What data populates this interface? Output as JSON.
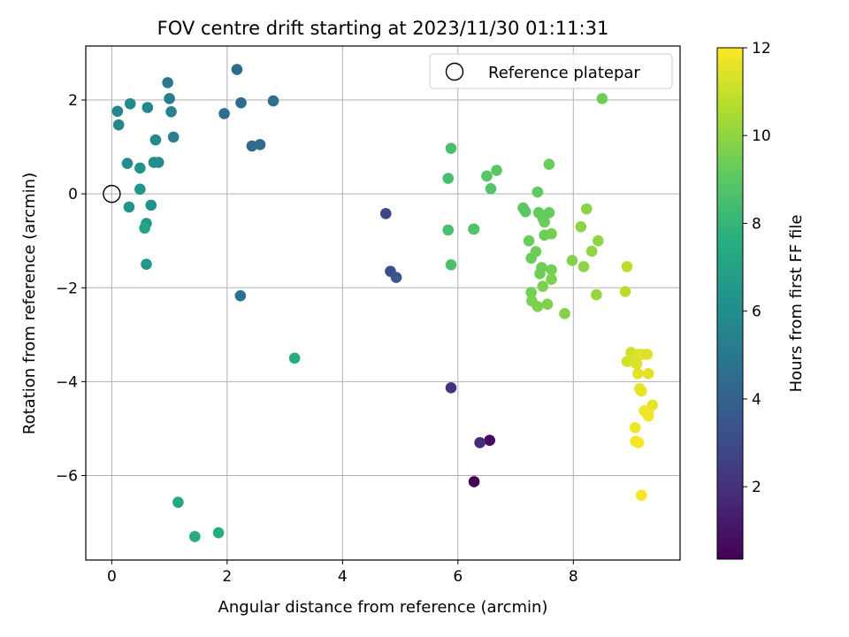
{
  "chart_data": {
    "type": "scatter",
    "title": "FOV centre drift starting at 2023/11/30 01:11:31",
    "xlabel": "Angular distance from reference (arcmin)",
    "ylabel": "Rotation from reference (arcmin)",
    "xlim": [
      -0.45,
      9.85
    ],
    "ylim": [
      -7.8,
      3.15
    ],
    "xticks": [
      0,
      2,
      4,
      6,
      8
    ],
    "yticks": [
      2,
      0,
      -2,
      -4,
      -6
    ],
    "xtick_labels": [
      "0",
      "2",
      "4",
      "6",
      "8"
    ],
    "ytick_labels": [
      "2",
      "0",
      "−2",
      "−4",
      "−6"
    ],
    "grid": true,
    "legend": {
      "placement": "top-right",
      "entries": [
        "Reference platepar"
      ]
    },
    "reference_marker": {
      "label": "Reference platepar",
      "x": 0,
      "y": 0,
      "style": "open-circle"
    },
    "colorbar": {
      "label": "Hours from first FF file",
      "colormap": "viridis",
      "min": 0.35,
      "max": 12,
      "ticks": [
        2,
        4,
        6,
        8,
        10,
        12
      ],
      "tick_labels": [
        "2",
        "4",
        "6",
        "8",
        "10",
        "12"
      ]
    },
    "series": [
      {
        "columns": [
          "x",
          "y",
          "hours"
        ],
        "points": [
          [
            6.28,
            -6.13,
            0.4
          ],
          [
            6.55,
            -5.25,
            0.7
          ],
          [
            6.38,
            -5.3,
            1.8
          ],
          [
            5.88,
            -4.13,
            2.1
          ],
          [
            4.75,
            -0.42,
            2.8
          ],
          [
            4.83,
            -1.65,
            3.1
          ],
          [
            4.93,
            -1.78,
            3.4
          ],
          [
            2.23,
            -2.17,
            4.6
          ],
          [
            2.17,
            2.65,
            4.4
          ],
          [
            2.24,
            1.94,
            4.5
          ],
          [
            1.95,
            1.71,
            4.6
          ],
          [
            2.43,
            1.02,
            4.3
          ],
          [
            2.57,
            1.05,
            4.4
          ],
          [
            2.8,
            1.98,
            4.6
          ],
          [
            0.97,
            2.37,
            5.0
          ],
          [
            1.0,
            2.03,
            5.2
          ],
          [
            1.03,
            1.75,
            5.5
          ],
          [
            1.07,
            1.21,
            5.3
          ],
          [
            0.62,
            1.84,
            5.6
          ],
          [
            0.32,
            1.92,
            5.8
          ],
          [
            0.1,
            1.76,
            5.6
          ],
          [
            0.12,
            1.47,
            5.7
          ],
          [
            0.76,
            1.15,
            5.8
          ],
          [
            0.27,
            0.65,
            6.0
          ],
          [
            0.73,
            0.67,
            6.1
          ],
          [
            0.81,
            0.67,
            6.0
          ],
          [
            0.49,
            0.55,
            6.3
          ],
          [
            0.49,
            0.1,
            6.4
          ],
          [
            0.3,
            -0.28,
            6.3
          ],
          [
            0.68,
            -0.24,
            6.2
          ],
          [
            0.6,
            -0.63,
            6.6
          ],
          [
            0.6,
            -1.5,
            6.5
          ],
          [
            0.57,
            -0.73,
            7.2
          ],
          [
            3.17,
            -3.5,
            7.5
          ],
          [
            1.15,
            -6.57,
            7.3
          ],
          [
            1.44,
            -7.3,
            7.4
          ],
          [
            1.85,
            -7.22,
            7.5
          ],
          [
            5.83,
            0.33,
            8.5
          ],
          [
            5.88,
            0.97,
            8.5
          ],
          [
            5.83,
            -0.77,
            8.5
          ],
          [
            5.88,
            -1.51,
            8.6
          ],
          [
            6.28,
            -0.75,
            8.8
          ],
          [
            6.27,
            -0.75,
            8.7
          ],
          [
            6.5,
            0.38,
            8.9
          ],
          [
            6.57,
            0.11,
            8.8
          ],
          [
            6.67,
            0.5,
            9.0
          ],
          [
            7.13,
            -0.3,
            9.0
          ],
          [
            7.17,
            -0.38,
            9.0
          ],
          [
            7.38,
            0.04,
            9.1
          ],
          [
            7.4,
            -0.4,
            9.2
          ],
          [
            7.47,
            -0.52,
            9.2
          ],
          [
            7.5,
            -0.6,
            9.3
          ],
          [
            7.58,
            -0.4,
            9.2
          ],
          [
            7.58,
            0.63,
            9.3
          ],
          [
            7.23,
            -1.0,
            9.3
          ],
          [
            7.35,
            -1.23,
            9.4
          ],
          [
            7.27,
            -1.37,
            9.3
          ],
          [
            7.45,
            -1.57,
            9.4
          ],
          [
            7.42,
            -1.7,
            9.4
          ],
          [
            7.5,
            -0.88,
            9.4
          ],
          [
            7.62,
            -0.85,
            9.5
          ],
          [
            7.62,
            -1.62,
            9.5
          ],
          [
            7.62,
            -1.82,
            9.6
          ],
          [
            7.27,
            -2.1,
            9.5
          ],
          [
            7.28,
            -2.28,
            9.6
          ],
          [
            7.47,
            -1.97,
            9.6
          ],
          [
            7.38,
            -2.4,
            9.7
          ],
          [
            7.55,
            -2.35,
            9.7
          ],
          [
            7.85,
            -2.55,
            9.8
          ],
          [
            7.98,
            -1.42,
            9.8
          ],
          [
            8.13,
            -0.7,
            9.9
          ],
          [
            8.18,
            -1.55,
            9.9
          ],
          [
            8.23,
            -0.32,
            9.9
          ],
          [
            8.32,
            -1.22,
            10.0
          ],
          [
            8.43,
            -1.0,
            10.0
          ],
          [
            8.4,
            -2.15,
            10.1
          ],
          [
            8.5,
            2.03,
            9.4
          ],
          [
            8.93,
            -1.55,
            10.8
          ],
          [
            8.9,
            -2.08,
            10.8
          ],
          [
            8.93,
            -3.57,
            11.2
          ],
          [
            9.0,
            -3.38,
            11.2
          ],
          [
            9.07,
            -3.6,
            11.3
          ],
          [
            9.1,
            -3.62,
            11.4
          ],
          [
            9.13,
            -3.42,
            11.4
          ],
          [
            9.2,
            -3.42,
            11.5
          ],
          [
            9.28,
            -3.42,
            11.4
          ],
          [
            9.12,
            -3.83,
            11.5
          ],
          [
            9.3,
            -3.83,
            11.5
          ],
          [
            9.15,
            -4.15,
            11.6
          ],
          [
            9.18,
            -4.2,
            11.6
          ],
          [
            9.23,
            -4.62,
            11.7
          ],
          [
            9.3,
            -4.73,
            11.7
          ],
          [
            9.37,
            -4.5,
            11.6
          ],
          [
            9.3,
            -4.68,
            11.8
          ],
          [
            9.07,
            -4.98,
            11.7
          ],
          [
            9.08,
            -5.27,
            11.8
          ],
          [
            9.13,
            -5.3,
            11.9
          ],
          [
            9.18,
            -6.42,
            11.9
          ]
        ]
      }
    ]
  }
}
